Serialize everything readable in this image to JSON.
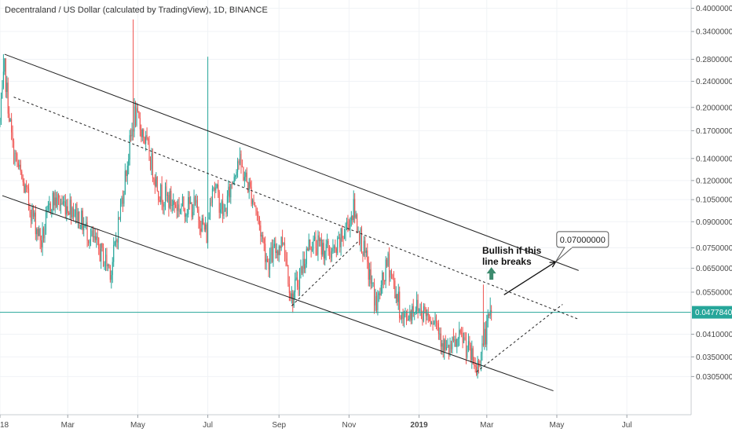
{
  "chart_data": {
    "type": "candlestick",
    "title": "Decentraland / US Dollar (calculated by TradingView), 1D, BINANCE",
    "xlabel": "",
    "ylabel": "",
    "y_scale": "log",
    "ylim": [
      0.0265,
      0.41
    ],
    "x_range": [
      "2018-01-01",
      "2019-08-26"
    ],
    "x_ticks": [
      {
        "date": "2018-01-01",
        "label": "18"
      },
      {
        "date": "2018-03-01",
        "label": "Mar"
      },
      {
        "date": "2018-05-01",
        "label": "May"
      },
      {
        "date": "2018-07-01",
        "label": "Jul"
      },
      {
        "date": "2018-09-01",
        "label": "Sep"
      },
      {
        "date": "2018-11-01",
        "label": "Nov"
      },
      {
        "date": "2019-01-01",
        "label": "2019"
      },
      {
        "date": "2019-03-01",
        "label": "Mar"
      },
      {
        "date": "2019-05-01",
        "label": "May"
      },
      {
        "date": "2019-07-01",
        "label": "Jul"
      }
    ],
    "y_ticks": [
      {
        "value": 0.4,
        "label": "0.40000000"
      },
      {
        "value": 0.34,
        "label": "0.34000000"
      },
      {
        "value": 0.28,
        "label": "0.28000000"
      },
      {
        "value": 0.24,
        "label": "0.24000000"
      },
      {
        "value": 0.2,
        "label": "0.20000000"
      },
      {
        "value": 0.17,
        "label": "0.17000000"
      },
      {
        "value": 0.14,
        "label": "0.14000000"
      },
      {
        "value": 0.12,
        "label": "0.12000000"
      },
      {
        "value": 0.105,
        "label": "0.10500000"
      },
      {
        "value": 0.09,
        "label": "0.09000000"
      },
      {
        "value": 0.075,
        "label": "0.07500000"
      },
      {
        "value": 0.065,
        "label": "0.06500000"
      },
      {
        "value": 0.055,
        "label": "0.05500000"
      },
      {
        "value": 0.041,
        "label": "0.04100000"
      },
      {
        "value": 0.035,
        "label": "0.03500000"
      },
      {
        "value": 0.0305,
        "label": "0.03050000"
      }
    ],
    "last_price": {
      "value": 0.047784,
      "label": "0.04778400"
    },
    "waypoints": [
      {
        "date": "2018-01-01",
        "price": 0.18
      },
      {
        "date": "2018-01-05",
        "price": 0.26
      },
      {
        "date": "2018-01-12",
        "price": 0.15
      },
      {
        "date": "2018-01-20",
        "price": 0.12
      },
      {
        "date": "2018-02-06",
        "price": 0.078
      },
      {
        "date": "2018-02-15",
        "price": 0.105
      },
      {
        "date": "2018-03-05",
        "price": 0.1
      },
      {
        "date": "2018-03-20",
        "price": 0.082
      },
      {
        "date": "2018-04-08",
        "price": 0.064
      },
      {
        "date": "2018-04-28",
        "price": 0.19
      },
      {
        "date": "2018-05-05",
        "price": 0.17
      },
      {
        "date": "2018-05-20",
        "price": 0.11
      },
      {
        "date": "2018-06-05",
        "price": 0.1
      },
      {
        "date": "2018-06-20",
        "price": 0.1
      },
      {
        "date": "2018-06-30",
        "price": 0.082
      },
      {
        "date": "2018-07-05",
        "price": 0.12
      },
      {
        "date": "2018-07-15",
        "price": 0.094
      },
      {
        "date": "2018-07-27",
        "price": 0.14
      },
      {
        "date": "2018-08-10",
        "price": 0.105
      },
      {
        "date": "2018-08-22",
        "price": 0.068
      },
      {
        "date": "2018-09-05",
        "price": 0.08
      },
      {
        "date": "2018-09-12",
        "price": 0.052
      },
      {
        "date": "2018-09-28",
        "price": 0.078
      },
      {
        "date": "2018-10-20",
        "price": 0.072
      },
      {
        "date": "2018-11-05",
        "price": 0.098
      },
      {
        "date": "2018-11-12",
        "price": 0.078
      },
      {
        "date": "2018-11-25",
        "price": 0.05
      },
      {
        "date": "2018-12-05",
        "price": 0.068
      },
      {
        "date": "2018-12-18",
        "price": 0.045
      },
      {
        "date": "2018-12-28",
        "price": 0.05
      },
      {
        "date": "2019-01-15",
        "price": 0.046
      },
      {
        "date": "2019-01-25",
        "price": 0.036
      },
      {
        "date": "2019-02-08",
        "price": 0.04
      },
      {
        "date": "2019-02-20",
        "price": 0.032
      },
      {
        "date": "2019-02-27",
        "price": 0.04
      },
      {
        "date": "2019-03-05",
        "price": 0.047784
      }
    ],
    "wick_spikes": [
      {
        "date": "2018-04-27",
        "high": 0.37
      },
      {
        "date": "2018-07-01",
        "high": 0.285
      },
      {
        "date": "2018-01-04",
        "high": 0.29
      },
      {
        "date": "2018-11-05",
        "high": 0.112
      },
      {
        "date": "2019-02-26",
        "high": 0.058
      },
      {
        "date": "2019-03-04",
        "high": 0.053
      }
    ],
    "trendlines": [
      {
        "style": "solid",
        "from": {
          "date": "2018-01-05",
          "price": 0.29
        },
        "to": {
          "date": "2019-05-20",
          "price": 0.064
        }
      },
      {
        "style": "solid",
        "from": {
          "date": "2018-01-03",
          "price": 0.108
        },
        "to": {
          "date": "2019-04-28",
          "price": 0.0276
        }
      },
      {
        "style": "dashed",
        "from": {
          "date": "2018-01-13",
          "price": 0.215
        },
        "to": {
          "date": "2019-05-20",
          "price": 0.0455
        }
      },
      {
        "style": "dashed",
        "from": {
          "date": "2018-09-12",
          "price": 0.05
        },
        "to": {
          "date": "2018-11-10",
          "price": 0.079
        }
      },
      {
        "style": "dashed",
        "from": {
          "date": "2019-02-20",
          "price": 0.0315
        },
        "to": {
          "date": "2019-05-06",
          "price": 0.0505
        }
      }
    ],
    "annotations": {
      "note_lines": [
        "Bullish if this",
        "line breaks"
      ],
      "note_anchor": {
        "date": "2019-02-25",
        "price": 0.072
      },
      "up_arrow": {
        "date": "2019-03-05",
        "price": 0.061
      },
      "arrow_from": {
        "date": "2019-03-16",
        "price": 0.054
      },
      "arrow_to": {
        "date": "2019-04-30",
        "price": 0.068
      },
      "callout_label": "0.07000000",
      "callout_box": {
        "date": "2019-05-05",
        "price": 0.0795
      },
      "callout_pointer": {
        "date": "2019-04-30",
        "price": 0.068
      }
    },
    "colors": {
      "up": "#26a69a",
      "down": "#ef5350",
      "last_price": "#26a69a",
      "trendline": "#222222",
      "grid": "#f0f3f6",
      "up_arrow": "#3d8b6e"
    }
  }
}
